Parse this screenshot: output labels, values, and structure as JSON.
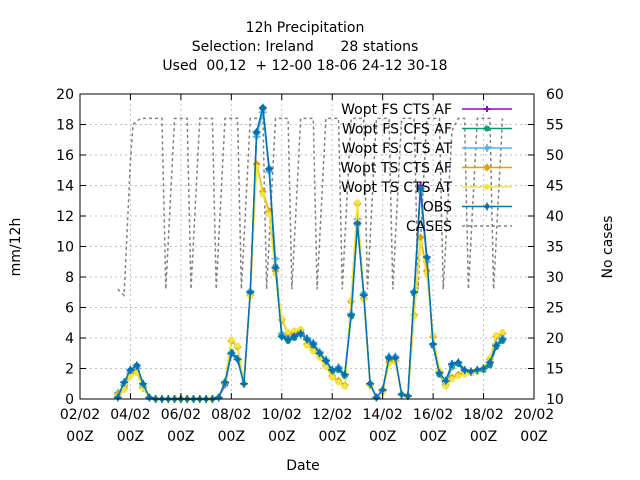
{
  "chart_data": {
    "type": "line",
    "title": "12h Precipitation",
    "subtitle": "Selection: Ireland      28 stations",
    "subtitle2": "Used  00,12  + 12-00 18-06 24-12 30-18",
    "xlabel": "Date",
    "ylabel": "mm/12h",
    "y2label": "No cases",
    "ylim": [
      0,
      20
    ],
    "y2lim": [
      10,
      60
    ],
    "xlim_days": [
      2,
      20
    ],
    "x_ticks": [
      {
        "day": 2,
        "line1": "02/02",
        "line2": "00Z"
      },
      {
        "day": 4,
        "line1": "04/02",
        "line2": "00Z"
      },
      {
        "day": 6,
        "line1": "06/02",
        "line2": "00Z"
      },
      {
        "day": 8,
        "line1": "08/02",
        "line2": "00Z"
      },
      {
        "day": 10,
        "line1": "10/02",
        "line2": "00Z"
      },
      {
        "day": 12,
        "line1": "12/02",
        "line2": "00Z"
      },
      {
        "day": 14,
        "line1": "14/02",
        "line2": "00Z"
      },
      {
        "day": 16,
        "line1": "16/02",
        "line2": "00Z"
      },
      {
        "day": 18,
        "line1": "18/02",
        "line2": "00Z"
      },
      {
        "day": 20,
        "line1": "20/02",
        "line2": "00Z"
      }
    ],
    "y_ticks": [
      "0",
      "2",
      "4",
      "6",
      "8",
      "10",
      "12",
      "14",
      "16",
      "18",
      "20"
    ],
    "y2_ticks": [
      "10",
      "15",
      "20",
      "25",
      "30",
      "35",
      "40",
      "45",
      "50",
      "55",
      "60"
    ],
    "grid": true,
    "legend_position": "top-right",
    "x_days": [
      3.5,
      3.75,
      4,
      4.25,
      4.5,
      4.75,
      5,
      5.25,
      5.5,
      5.75,
      6,
      6.25,
      6.5,
      6.75,
      7,
      7.25,
      7.5,
      7.75,
      8,
      8.25,
      8.5,
      8.75,
      9,
      9.25,
      9.5,
      9.75,
      10,
      10.25,
      10.5,
      10.75,
      11,
      11.25,
      11.5,
      11.75,
      12,
      12.25,
      12.5,
      12.75,
      13,
      13.25,
      13.5,
      13.75,
      14,
      14.25,
      14.5,
      14.75,
      15,
      15.25,
      15.5,
      15.75,
      16,
      16.25,
      16.5,
      16.75,
      17,
      17.25,
      17.5,
      17.75,
      18,
      18.25,
      18.5,
      18.75
    ],
    "series": [
      {
        "name": "Wopt FS CTS AF",
        "color": "#9400d3",
        "marker": "plus",
        "values": [
          0.3,
          0.8,
          1.8,
          2.1,
          0.8,
          0.1,
          0,
          0,
          0,
          0,
          0,
          0,
          0,
          0,
          0,
          0,
          0.1,
          0.9,
          3.0,
          2.6,
          1.0,
          7.0,
          17.4,
          19.0,
          15.0,
          8.6,
          4.2,
          3.9,
          4.2,
          4.4,
          4.0,
          3.6,
          3.0,
          2.5,
          1.9,
          2.0,
          1.6,
          5.5,
          11.6,
          6.8,
          1.0,
          0.1,
          0.6,
          2.7,
          2.7,
          0.3,
          0.2,
          7.0,
          14.0,
          9.3,
          3.6,
          1.6,
          1.0,
          2.2,
          2.3,
          1.8,
          1.7,
          1.8,
          2.0,
          2.3,
          3.5,
          3.9
        ]
      },
      {
        "name": "Wopt FS CFS AF",
        "color": "#009e73",
        "marker": "circle",
        "values": [
          0.2,
          1.0,
          1.9,
          2.2,
          0.9,
          0.1,
          0,
          0,
          0,
          0,
          0,
          0,
          0,
          0,
          0,
          0,
          0.1,
          1.0,
          3.1,
          2.7,
          1.1,
          6.9,
          17.5,
          19.1,
          15.1,
          8.7,
          4.1,
          3.8,
          4.0,
          4.3,
          3.9,
          3.5,
          2.9,
          2.4,
          1.8,
          1.9,
          1.5,
          5.4,
          11.4,
          6.9,
          1.0,
          0.1,
          0.5,
          2.6,
          2.6,
          0.3,
          0.2,
          6.9,
          13.8,
          9.2,
          3.5,
          1.6,
          1.0,
          2.1,
          2.3,
          1.8,
          1.7,
          1.8,
          1.9,
          2.2,
          3.4,
          3.8
        ]
      },
      {
        "name": "Wopt FS CTS AT",
        "color": "#56b4e9",
        "marker": "star",
        "values": [
          0.4,
          0.9,
          1.7,
          2.0,
          0.8,
          0.1,
          0,
          0,
          0,
          0,
          0,
          0,
          0,
          0,
          0,
          0,
          0.1,
          1.0,
          2.9,
          2.6,
          1.0,
          7.1,
          17.2,
          18.8,
          14.9,
          9.2,
          4.3,
          4.0,
          4.1,
          4.2,
          4.0,
          3.7,
          3.1,
          2.6,
          1.9,
          2.1,
          1.6,
          5.6,
          11.8,
          6.9,
          1.0,
          0.1,
          0.6,
          2.8,
          2.8,
          0.3,
          0.2,
          7.1,
          13.6,
          9.0,
          3.6,
          1.7,
          1.1,
          2.2,
          2.4,
          1.9,
          1.8,
          1.9,
          2.0,
          2.4,
          3.6,
          4.0
        ]
      },
      {
        "name": "Wopt TS CTS AF",
        "color": "#e69f00",
        "marker": "diamond",
        "values": [
          0.3,
          0.7,
          1.6,
          1.8,
          0.7,
          0.1,
          0,
          0,
          0,
          0,
          0,
          0,
          0,
          0,
          0,
          0,
          0.1,
          1.1,
          3.8,
          3.4,
          1.0,
          6.8,
          15.4,
          13.6,
          12.3,
          8.4,
          5.2,
          4.3,
          4.4,
          4.5,
          3.6,
          3.2,
          2.8,
          2.2,
          1.5,
          1.2,
          0.9,
          6.4,
          12.8,
          6.6,
          0.9,
          0.1,
          0.5,
          2.4,
          2.5,
          0.3,
          0.2,
          5.5,
          10.6,
          8.4,
          4.1,
          1.8,
          0.9,
          1.4,
          1.6,
          1.7,
          1.8,
          1.9,
          2.0,
          2.6,
          4.1,
          4.3
        ]
      },
      {
        "name": "Wopt TS CTS AT",
        "color": "#f0e442",
        "marker": "circle",
        "values": [
          0.2,
          0.6,
          1.5,
          1.7,
          0.7,
          0.1,
          0,
          0,
          0,
          0,
          0,
          0,
          0,
          0,
          0,
          0,
          0.1,
          1.2,
          3.9,
          3.5,
          1.1,
          6.7,
          15.2,
          13.4,
          12.1,
          8.2,
          5.3,
          4.4,
          4.5,
          4.6,
          3.5,
          3.1,
          2.7,
          2.1,
          1.4,
          1.1,
          0.8,
          6.5,
          12.9,
          6.5,
          0.9,
          0.1,
          0.4,
          2.3,
          2.4,
          0.3,
          0.2,
          5.4,
          10.2,
          8.2,
          4.2,
          1.9,
          0.8,
          1.3,
          1.5,
          1.6,
          1.7,
          1.8,
          2.0,
          2.7,
          4.2,
          4.4
        ]
      },
      {
        "name": "OBS",
        "color": "#0072b2",
        "marker": "star",
        "values": [
          0.1,
          1.1,
          1.9,
          2.2,
          1.0,
          0.1,
          0,
          0,
          0,
          0,
          0,
          0,
          0,
          0,
          0,
          0,
          0.1,
          1.1,
          3.0,
          2.6,
          1.0,
          7.0,
          17.5,
          19.1,
          15.1,
          8.6,
          4.1,
          3.9,
          4.1,
          4.3,
          3.9,
          3.6,
          3.0,
          2.5,
          1.9,
          2.0,
          1.6,
          5.5,
          11.5,
          6.8,
          1.0,
          0.1,
          0.6,
          2.7,
          2.7,
          0.3,
          0.2,
          7.0,
          13.8,
          9.3,
          3.6,
          1.7,
          1.2,
          2.3,
          2.4,
          1.9,
          1.8,
          1.9,
          2.0,
          2.4,
          3.5,
          3.9
        ]
      }
    ],
    "cases": {
      "name": "CASES",
      "color": "#808080",
      "axis": "y2",
      "x_days": [
        3.5,
        3.75,
        4,
        4.1,
        4.4,
        4.75,
        5,
        5.25,
        5.4,
        5.75,
        6,
        6.25,
        6.4,
        6.75,
        7,
        7.25,
        7.4,
        7.75,
        8,
        8.25,
        8.4,
        8.75,
        9,
        9.25,
        9.4,
        9.75,
        10,
        10.25,
        10.4,
        10.75,
        11,
        11.25,
        11.4,
        11.75,
        12,
        12.25,
        12.4,
        12.75,
        13,
        13.25,
        13.4,
        13.75,
        14,
        14.25,
        14.4,
        14.75,
        15,
        15.25,
        15.4,
        15.75,
        16,
        16.25,
        16.4,
        16.75,
        17,
        17.25,
        17.4,
        17.75,
        18,
        18.25,
        18.4,
        18.75
      ],
      "values": [
        28,
        27,
        49,
        55,
        56,
        56,
        56,
        56,
        28,
        56,
        56,
        56,
        28,
        56,
        56,
        56,
        28,
        56,
        56,
        56,
        28,
        56,
        56,
        56,
        28,
        56,
        56,
        56,
        28,
        56,
        56,
        56,
        28,
        56,
        56,
        56,
        28,
        56,
        56,
        56,
        28,
        56,
        56,
        56,
        28,
        56,
        56,
        56,
        28,
        56,
        56,
        56,
        28,
        54,
        56,
        56,
        28,
        56,
        56,
        56,
        28,
        56
      ]
    }
  }
}
